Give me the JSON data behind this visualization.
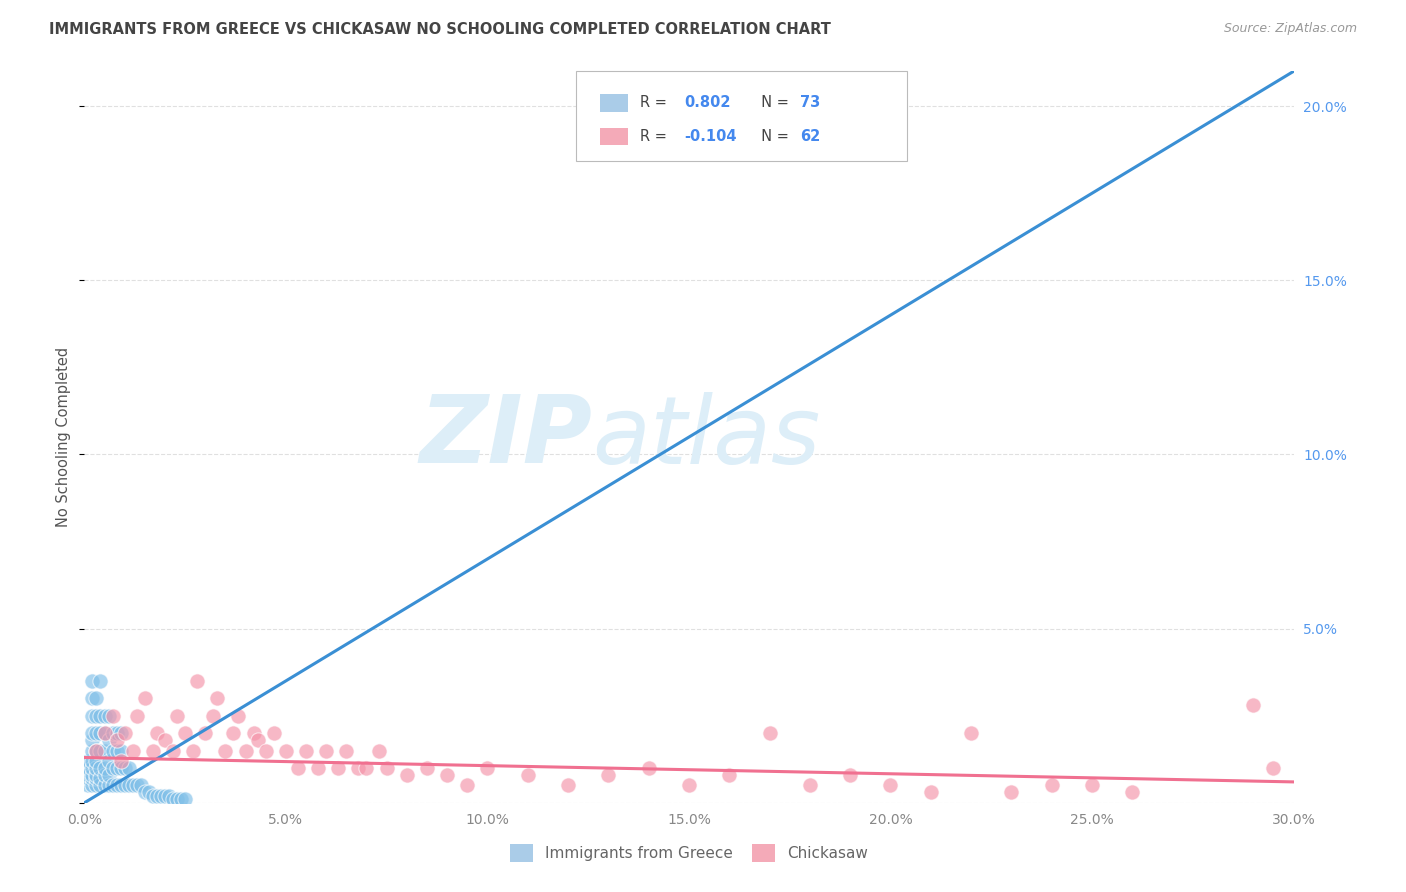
{
  "title": "IMMIGRANTS FROM GREECE VS CHICKASAW NO SCHOOLING COMPLETED CORRELATION CHART",
  "source": "Source: ZipAtlas.com",
  "ylabel": "No Schooling Completed",
  "xlim": [
    0.0,
    0.3
  ],
  "ylim": [
    0.0,
    0.21
  ],
  "xticks": [
    0.0,
    0.05,
    0.1,
    0.15,
    0.2,
    0.25,
    0.3
  ],
  "yticks": [
    0.0,
    0.05,
    0.1,
    0.15,
    0.2
  ],
  "ytick_labels": [
    "",
    "5.0%",
    "10.0%",
    "15.0%",
    "20.0%"
  ],
  "xtick_labels": [
    "0.0%",
    "5.0%",
    "10.0%",
    "15.0%",
    "20.0%",
    "25.0%",
    "30.0%"
  ],
  "greece_color": "#7fbfe8",
  "chickasaw_color": "#f493a8",
  "greece_line_color": "#3a8fd4",
  "chickasaw_line_color": "#f07090",
  "watermark_zip": "ZIP",
  "watermark_atlas": "atlas",
  "watermark_color": "#ddeef8",
  "background_color": "#ffffff",
  "grid_color": "#cccccc",
  "title_color": "#444444",
  "tick_label_color_y": "#5599ee",
  "tick_label_color_x": "#888888",
  "legend_blue_color": "#aacce8",
  "legend_pink_color": "#f4aab8",
  "R1": "0.802",
  "N1": "73",
  "R2": "-0.104",
  "N2": "62",
  "greece_scatter_x": [
    0.001,
    0.001,
    0.001,
    0.001,
    0.001,
    0.002,
    0.002,
    0.002,
    0.002,
    0.002,
    0.002,
    0.002,
    0.002,
    0.002,
    0.002,
    0.002,
    0.003,
    0.003,
    0.003,
    0.003,
    0.003,
    0.003,
    0.003,
    0.003,
    0.003,
    0.004,
    0.004,
    0.004,
    0.004,
    0.004,
    0.004,
    0.004,
    0.005,
    0.005,
    0.005,
    0.005,
    0.005,
    0.005,
    0.006,
    0.006,
    0.006,
    0.006,
    0.006,
    0.007,
    0.007,
    0.007,
    0.007,
    0.008,
    0.008,
    0.008,
    0.008,
    0.009,
    0.009,
    0.009,
    0.009,
    0.01,
    0.01,
    0.011,
    0.011,
    0.012,
    0.013,
    0.014,
    0.015,
    0.016,
    0.017,
    0.018,
    0.019,
    0.02,
    0.021,
    0.022,
    0.023,
    0.024,
    0.025
  ],
  "greece_scatter_y": [
    0.005,
    0.007,
    0.008,
    0.01,
    0.012,
    0.005,
    0.007,
    0.008,
    0.01,
    0.012,
    0.015,
    0.018,
    0.02,
    0.025,
    0.03,
    0.035,
    0.005,
    0.007,
    0.008,
    0.01,
    0.012,
    0.015,
    0.02,
    0.025,
    0.03,
    0.005,
    0.007,
    0.01,
    0.015,
    0.02,
    0.025,
    0.035,
    0.005,
    0.008,
    0.01,
    0.015,
    0.02,
    0.025,
    0.005,
    0.008,
    0.012,
    0.018,
    0.025,
    0.005,
    0.01,
    0.015,
    0.02,
    0.005,
    0.01,
    0.015,
    0.02,
    0.005,
    0.01,
    0.015,
    0.02,
    0.005,
    0.01,
    0.005,
    0.01,
    0.005,
    0.005,
    0.005,
    0.003,
    0.003,
    0.002,
    0.002,
    0.002,
    0.002,
    0.002,
    0.001,
    0.001,
    0.001,
    0.001
  ],
  "chickasaw_scatter_x": [
    0.003,
    0.005,
    0.007,
    0.008,
    0.009,
    0.01,
    0.012,
    0.013,
    0.015,
    0.017,
    0.018,
    0.02,
    0.022,
    0.023,
    0.025,
    0.027,
    0.028,
    0.03,
    0.032,
    0.033,
    0.035,
    0.037,
    0.038,
    0.04,
    0.042,
    0.043,
    0.045,
    0.047,
    0.05,
    0.053,
    0.055,
    0.058,
    0.06,
    0.063,
    0.065,
    0.068,
    0.07,
    0.073,
    0.075,
    0.08,
    0.085,
    0.09,
    0.095,
    0.1,
    0.11,
    0.12,
    0.13,
    0.14,
    0.15,
    0.16,
    0.17,
    0.18,
    0.19,
    0.2,
    0.21,
    0.22,
    0.23,
    0.24,
    0.25,
    0.26,
    0.29,
    0.295
  ],
  "chickasaw_scatter_y": [
    0.015,
    0.02,
    0.025,
    0.018,
    0.012,
    0.02,
    0.015,
    0.025,
    0.03,
    0.015,
    0.02,
    0.018,
    0.015,
    0.025,
    0.02,
    0.015,
    0.035,
    0.02,
    0.025,
    0.03,
    0.015,
    0.02,
    0.025,
    0.015,
    0.02,
    0.018,
    0.015,
    0.02,
    0.015,
    0.01,
    0.015,
    0.01,
    0.015,
    0.01,
    0.015,
    0.01,
    0.01,
    0.015,
    0.01,
    0.008,
    0.01,
    0.008,
    0.005,
    0.01,
    0.008,
    0.005,
    0.008,
    0.01,
    0.005,
    0.008,
    0.02,
    0.005,
    0.008,
    0.005,
    0.003,
    0.02,
    0.003,
    0.005,
    0.005,
    0.003,
    0.028,
    0.01
  ],
  "greece_trend_x": [
    0.0,
    0.3
  ],
  "greece_trend_y": [
    0.0,
    0.21
  ],
  "chickasaw_trend_x": [
    0.0,
    0.3
  ],
  "chickasaw_trend_y": [
    0.013,
    0.006
  ]
}
